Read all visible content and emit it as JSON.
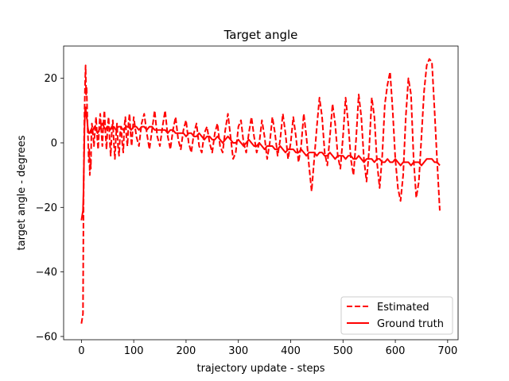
{
  "chart_data": {
    "type": "line",
    "title": "Target angle",
    "xlabel": "trajectory update - steps",
    "ylabel": "target angle - degrees",
    "xlim": [
      -34,
      720
    ],
    "ylim": [
      -61,
      30
    ],
    "xticks": [
      0,
      100,
      200,
      300,
      400,
      500,
      600,
      700
    ],
    "yticks": [
      -60,
      -40,
      -20,
      0,
      20
    ],
    "tick_labels": {
      "x": [
        "0",
        "100",
        "200",
        "300",
        "400",
        "500",
        "600",
        "700"
      ],
      "y": [
        "−60",
        "−40",
        "−20",
        "0",
        "20"
      ]
    },
    "grid": false,
    "legend_position": "lower-right",
    "series": [
      {
        "name": "Estimated",
        "color": "#ff0000",
        "style": "dashed",
        "points": [
          [
            0,
            -56
          ],
          [
            1,
            -55
          ],
          [
            2,
            -54
          ],
          [
            3,
            -53
          ],
          [
            4,
            -20
          ],
          [
            5,
            0
          ],
          [
            6,
            10
          ],
          [
            7,
            18
          ],
          [
            8,
            24
          ],
          [
            9,
            15
          ],
          [
            10,
            17
          ],
          [
            11,
            10
          ],
          [
            12,
            4
          ],
          [
            13,
            0
          ],
          [
            14,
            -6
          ],
          [
            15,
            -2
          ],
          [
            16,
            -10
          ],
          [
            17,
            -5
          ],
          [
            18,
            -8
          ],
          [
            19,
            2
          ],
          [
            20,
            6
          ],
          [
            22,
            3
          ],
          [
            24,
            -1
          ],
          [
            26,
            4
          ],
          [
            28,
            8
          ],
          [
            30,
            2
          ],
          [
            32,
            -2
          ],
          [
            34,
            5
          ],
          [
            36,
            9
          ],
          [
            38,
            4
          ],
          [
            40,
            -1
          ],
          [
            42,
            6
          ],
          [
            44,
            10
          ],
          [
            46,
            3
          ],
          [
            48,
            -2
          ],
          [
            50,
            5
          ],
          [
            52,
            8
          ],
          [
            54,
            1
          ],
          [
            56,
            -4
          ],
          [
            58,
            3
          ],
          [
            60,
            7
          ],
          [
            62,
            0
          ],
          [
            64,
            -5
          ],
          [
            66,
            2
          ],
          [
            68,
            6
          ],
          [
            70,
            -1
          ],
          [
            72,
            -4
          ],
          [
            74,
            3
          ],
          [
            76,
            5
          ],
          [
            78,
            0
          ],
          [
            80,
            -3
          ],
          [
            82,
            5
          ],
          [
            84,
            8
          ],
          [
            86,
            2
          ],
          [
            88,
            -1
          ],
          [
            90,
            6
          ],
          [
            92,
            9
          ],
          [
            94,
            3
          ],
          [
            96,
            -1
          ],
          [
            98,
            4
          ],
          [
            100,
            8
          ],
          [
            105,
            2
          ],
          [
            110,
            -1
          ],
          [
            115,
            6
          ],
          [
            120,
            9
          ],
          [
            125,
            3
          ],
          [
            130,
            -2
          ],
          [
            135,
            4
          ],
          [
            140,
            10
          ],
          [
            145,
            2
          ],
          [
            150,
            -1
          ],
          [
            155,
            5
          ],
          [
            160,
            10
          ],
          [
            165,
            2
          ],
          [
            170,
            -2
          ],
          [
            175,
            4
          ],
          [
            180,
            8
          ],
          [
            185,
            1
          ],
          [
            190,
            -2
          ],
          [
            195,
            4
          ],
          [
            200,
            7
          ],
          [
            205,
            0
          ],
          [
            210,
            -3
          ],
          [
            215,
            3
          ],
          [
            220,
            6
          ],
          [
            225,
            -1
          ],
          [
            230,
            -3
          ],
          [
            235,
            3
          ],
          [
            240,
            5
          ],
          [
            245,
            0
          ],
          [
            250,
            -3
          ],
          [
            255,
            3
          ],
          [
            260,
            6
          ],
          [
            265,
            -1
          ],
          [
            270,
            -3
          ],
          [
            275,
            4
          ],
          [
            280,
            9
          ],
          [
            285,
            2
          ],
          [
            290,
            -5
          ],
          [
            295,
            -3
          ],
          [
            300,
            5
          ],
          [
            305,
            7
          ],
          [
            310,
            0
          ],
          [
            315,
            -3
          ],
          [
            320,
            3
          ],
          [
            325,
            8
          ],
          [
            330,
            2
          ],
          [
            335,
            -3
          ],
          [
            340,
            0
          ],
          [
            345,
            7
          ],
          [
            350,
            2
          ],
          [
            355,
            -5
          ],
          [
            360,
            0
          ],
          [
            365,
            8
          ],
          [
            370,
            3
          ],
          [
            375,
            -4
          ],
          [
            380,
            1
          ],
          [
            385,
            9
          ],
          [
            390,
            3
          ],
          [
            395,
            -5
          ],
          [
            400,
            0
          ],
          [
            405,
            8
          ],
          [
            410,
            2
          ],
          [
            415,
            -6
          ],
          [
            420,
            -1
          ],
          [
            425,
            9
          ],
          [
            430,
            2
          ],
          [
            435,
            -7
          ],
          [
            440,
            -15
          ],
          [
            445,
            -5
          ],
          [
            450,
            5
          ],
          [
            455,
            14
          ],
          [
            460,
            8
          ],
          [
            465,
            -3
          ],
          [
            470,
            -7
          ],
          [
            475,
            2
          ],
          [
            480,
            12
          ],
          [
            485,
            6
          ],
          [
            490,
            -4
          ],
          [
            495,
            -8
          ],
          [
            500,
            2
          ],
          [
            505,
            14
          ],
          [
            510,
            6
          ],
          [
            515,
            -5
          ],
          [
            520,
            -10
          ],
          [
            525,
            1
          ],
          [
            530,
            15
          ],
          [
            535,
            8
          ],
          [
            540,
            -5
          ],
          [
            545,
            -12
          ],
          [
            550,
            -2
          ],
          [
            555,
            14
          ],
          [
            560,
            8
          ],
          [
            565,
            -6
          ],
          [
            570,
            -14
          ],
          [
            575,
            -4
          ],
          [
            580,
            12
          ],
          [
            585,
            18
          ],
          [
            590,
            22
          ],
          [
            595,
            10
          ],
          [
            600,
            -5
          ],
          [
            605,
            -14
          ],
          [
            610,
            -18
          ],
          [
            615,
            -10
          ],
          [
            620,
            8
          ],
          [
            625,
            20
          ],
          [
            630,
            15
          ],
          [
            635,
            -5
          ],
          [
            640,
            -17
          ],
          [
            645,
            -12
          ],
          [
            650,
            2
          ],
          [
            655,
            16
          ],
          [
            660,
            24
          ],
          [
            665,
            26
          ],
          [
            670,
            25
          ],
          [
            675,
            10
          ],
          [
            680,
            -6
          ],
          [
            685,
            -21
          ]
        ]
      },
      {
        "name": "Ground truth",
        "color": "#ff0000",
        "style": "solid",
        "points": [
          [
            0,
            -24
          ],
          [
            1,
            -23
          ],
          [
            2,
            -22
          ],
          [
            3,
            -21
          ],
          [
            4,
            -15
          ],
          [
            5,
            -5
          ],
          [
            6,
            5
          ],
          [
            7,
            10
          ],
          [
            8,
            11
          ],
          [
            9,
            9
          ],
          [
            10,
            8
          ],
          [
            11,
            7
          ],
          [
            12,
            5
          ],
          [
            13,
            4
          ],
          [
            14,
            3
          ],
          [
            16,
            3
          ],
          [
            18,
            4
          ],
          [
            20,
            3
          ],
          [
            22,
            4
          ],
          [
            25,
            5
          ],
          [
            28,
            4
          ],
          [
            31,
            3
          ],
          [
            34,
            4
          ],
          [
            37,
            5
          ],
          [
            40,
            6
          ],
          [
            43,
            5
          ],
          [
            46,
            4
          ],
          [
            49,
            5
          ],
          [
            52,
            5
          ],
          [
            55,
            4
          ],
          [
            58,
            5
          ],
          [
            62,
            5
          ],
          [
            66,
            4
          ],
          [
            70,
            5
          ],
          [
            75,
            5
          ],
          [
            80,
            4
          ],
          [
            85,
            5
          ],
          [
            90,
            5
          ],
          [
            95,
            4
          ],
          [
            100,
            5
          ],
          [
            105,
            5
          ],
          [
            110,
            4
          ],
          [
            115,
            5
          ],
          [
            120,
            5
          ],
          [
            125,
            4
          ],
          [
            130,
            5
          ],
          [
            135,
            5
          ],
          [
            140,
            4
          ],
          [
            145,
            4
          ],
          [
            150,
            4
          ],
          [
            155,
            4
          ],
          [
            160,
            4
          ],
          [
            165,
            3
          ],
          [
            170,
            4
          ],
          [
            175,
            4
          ],
          [
            180,
            3
          ],
          [
            185,
            3
          ],
          [
            190,
            3
          ],
          [
            195,
            3
          ],
          [
            200,
            2
          ],
          [
            205,
            3
          ],
          [
            210,
            3
          ],
          [
            215,
            2
          ],
          [
            220,
            2
          ],
          [
            225,
            3
          ],
          [
            230,
            2
          ],
          [
            235,
            1
          ],
          [
            240,
            2
          ],
          [
            245,
            2
          ],
          [
            250,
            1
          ],
          [
            255,
            1
          ],
          [
            260,
            2
          ],
          [
            265,
            1
          ],
          [
            270,
            0
          ],
          [
            275,
            1
          ],
          [
            280,
            2
          ],
          [
            285,
            1
          ],
          [
            290,
            0
          ],
          [
            295,
            0
          ],
          [
            300,
            1
          ],
          [
            305,
            0
          ],
          [
            310,
            -1
          ],
          [
            315,
            0
          ],
          [
            320,
            1
          ],
          [
            325,
            0
          ],
          [
            330,
            -1
          ],
          [
            335,
            -1
          ],
          [
            340,
            0
          ],
          [
            345,
            -1
          ],
          [
            350,
            -2
          ],
          [
            355,
            -1
          ],
          [
            360,
            -1
          ],
          [
            365,
            -1
          ],
          [
            370,
            -2
          ],
          [
            375,
            -2
          ],
          [
            380,
            -1
          ],
          [
            385,
            -2
          ],
          [
            390,
            -3
          ],
          [
            395,
            -2
          ],
          [
            400,
            -2
          ],
          [
            405,
            -2
          ],
          [
            410,
            -3
          ],
          [
            415,
            -3
          ],
          [
            420,
            -2
          ],
          [
            425,
            -3
          ],
          [
            430,
            -4
          ],
          [
            435,
            -3
          ],
          [
            440,
            -3
          ],
          [
            445,
            -3
          ],
          [
            450,
            -4
          ],
          [
            455,
            -3
          ],
          [
            460,
            -3
          ],
          [
            465,
            -4
          ],
          [
            470,
            -4
          ],
          [
            475,
            -3
          ],
          [
            480,
            -4
          ],
          [
            485,
            -5
          ],
          [
            490,
            -4
          ],
          [
            495,
            -4
          ],
          [
            500,
            -4
          ],
          [
            505,
            -5
          ],
          [
            510,
            -4
          ],
          [
            515,
            -4
          ],
          [
            520,
            -5
          ],
          [
            525,
            -5
          ],
          [
            530,
            -4
          ],
          [
            535,
            -5
          ],
          [
            540,
            -6
          ],
          [
            545,
            -5
          ],
          [
            550,
            -5
          ],
          [
            555,
            -5
          ],
          [
            560,
            -6
          ],
          [
            565,
            -5
          ],
          [
            570,
            -5
          ],
          [
            575,
            -6
          ],
          [
            580,
            -6
          ],
          [
            585,
            -5
          ],
          [
            590,
            -6
          ],
          [
            595,
            -6
          ],
          [
            600,
            -5
          ],
          [
            605,
            -6
          ],
          [
            610,
            -7
          ],
          [
            615,
            -6
          ],
          [
            620,
            -6
          ],
          [
            625,
            -6
          ],
          [
            630,
            -7
          ],
          [
            635,
            -6
          ],
          [
            640,
            -6
          ],
          [
            645,
            -6
          ],
          [
            650,
            -7
          ],
          [
            655,
            -6
          ],
          [
            660,
            -5
          ],
          [
            665,
            -5
          ],
          [
            670,
            -5
          ],
          [
            675,
            -6
          ],
          [
            680,
            -6
          ],
          [
            685,
            -7
          ]
        ]
      }
    ]
  }
}
